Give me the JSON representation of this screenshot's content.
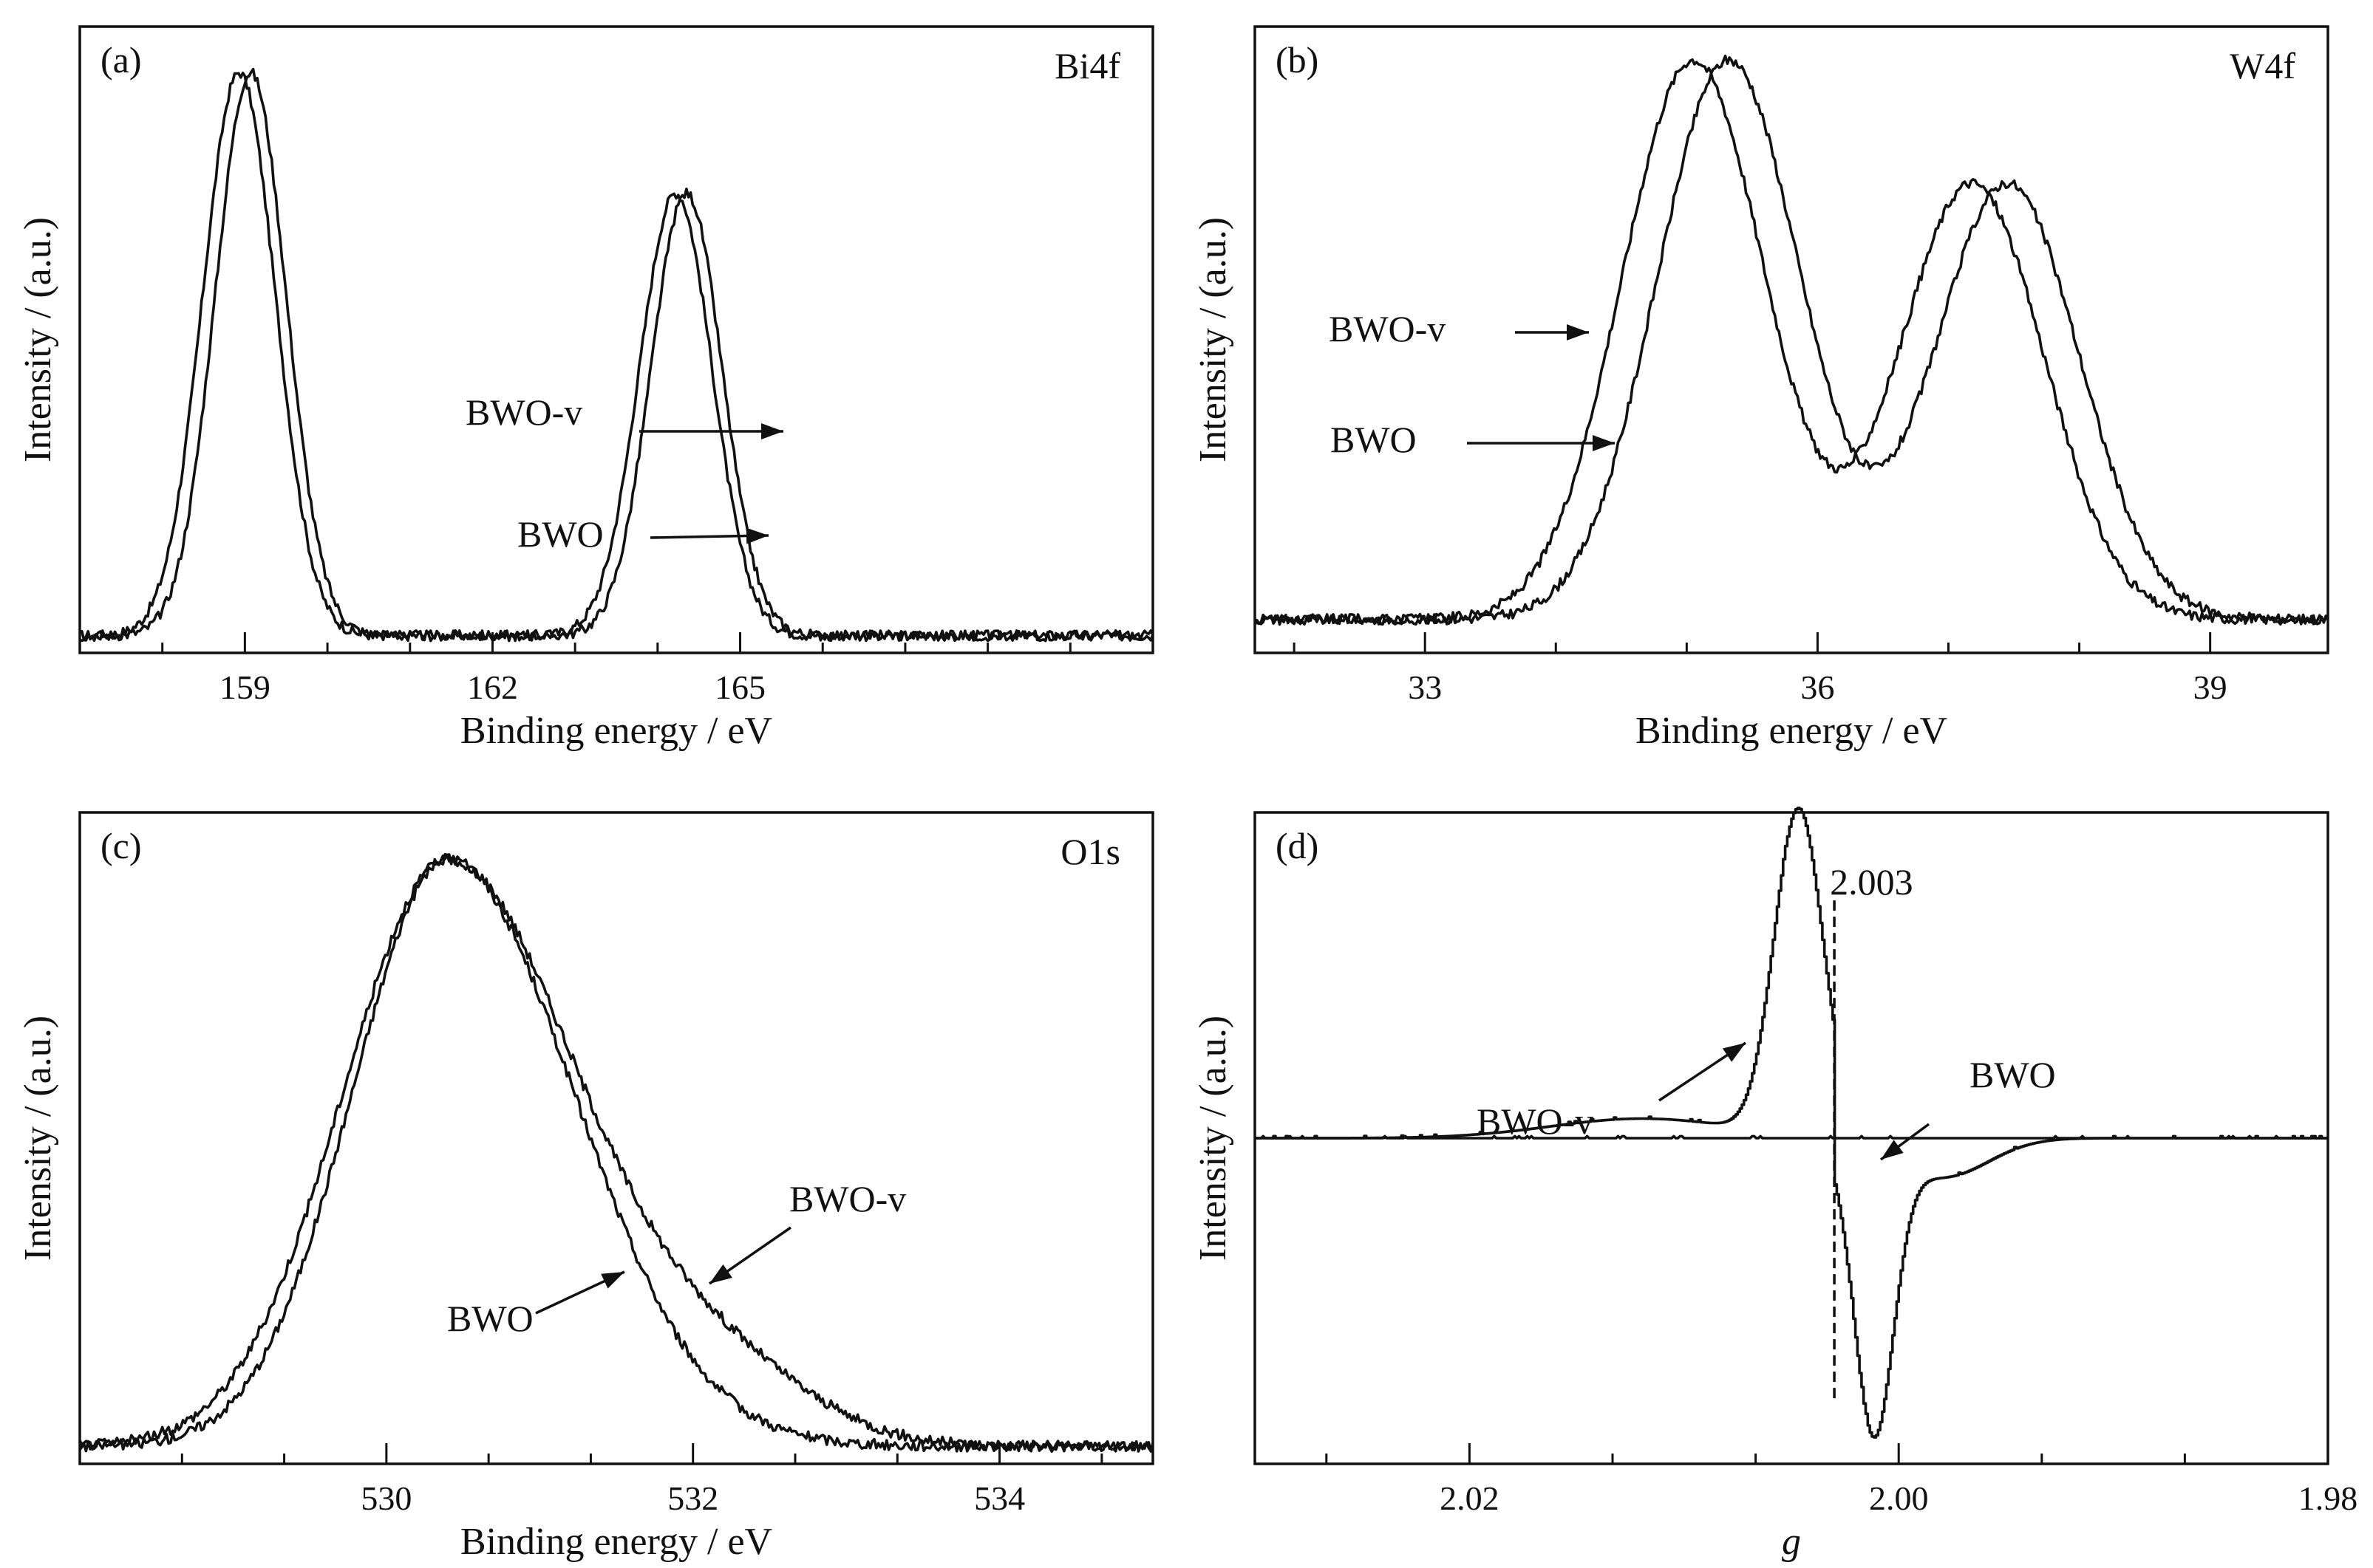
{
  "chart_data": [
    {
      "id": "a",
      "type": "line",
      "panel_label": "(a)",
      "title": "Bi4f",
      "xlabel": "Binding energy / eV",
      "ylabel": "Intensity / (a.u.)",
      "xlim": [
        157.0,
        170.0
      ],
      "ylim": [
        -0.03,
        1.06
      ],
      "xticks": [
        159,
        162,
        165
      ],
      "xtick_labels": [
        "159",
        "162",
        "165"
      ],
      "y_tick_labels": false,
      "series": [
        {
          "name": "BWO-v",
          "peaks": [
            {
              "center": 158.93,
              "height": 0.98,
              "width": 0.44
            },
            {
              "center": 164.22,
              "height": 0.77,
              "width": 0.44
            }
          ],
          "baseline": 0.0
        },
        {
          "name": "BWO",
          "peaks": [
            {
              "center": 159.07,
              "height": 0.98,
              "width": 0.43
            },
            {
              "center": 164.35,
              "height": 0.77,
              "width": 0.43
            }
          ],
          "baseline": 0.0
        }
      ],
      "annotations": [
        {
          "text": "BWO-v",
          "arrow_to": [
            163.5,
            0.38
          ]
        },
        {
          "text": "BWO",
          "arrow_to": [
            163.45,
            0.17
          ]
        }
      ]
    },
    {
      "id": "b",
      "type": "line",
      "panel_label": "(b)",
      "title": "W4f",
      "xlabel": "Binding energy / eV",
      "ylabel": "Intensity / (a.u.)",
      "xlim": [
        31.7,
        39.9
      ],
      "ylim": [
        -0.06,
        1.06
      ],
      "xticks": [
        33,
        36,
        39
      ],
      "xtick_labels": [
        "33",
        "36",
        "39"
      ],
      "y_tick_labels": false,
      "series": [
        {
          "name": "BWO-v",
          "peaks": [
            {
              "center": 35.05,
              "height": 1.0,
              "width": 0.55
            },
            {
              "center": 37.18,
              "height": 0.78,
              "width": 0.55
            }
          ],
          "baseline": 0.0
        },
        {
          "name": "BWO",
          "peaks": [
            {
              "center": 35.32,
              "height": 1.0,
              "width": 0.55
            },
            {
              "center": 37.45,
              "height": 0.78,
              "width": 0.55
            }
          ],
          "baseline": 0.0
        }
      ],
      "annotations": [
        {
          "text": "BWO-v",
          "arrow_to": [
            34.35,
            0.6
          ]
        },
        {
          "text": "BWO",
          "arrow_to": [
            34.6,
            0.37
          ]
        }
      ]
    },
    {
      "id": "c",
      "type": "line",
      "panel_label": "(c)",
      "title": "O1s",
      "xlabel": "Binding energy / eV",
      "ylabel": "Intensity / (a.u.)",
      "xlim": [
        528.0,
        535.0
      ],
      "ylim": [
        -0.03,
        1.08
      ],
      "xticks": [
        530,
        532,
        534
      ],
      "xtick_labels": [
        "530",
        "532",
        "534"
      ],
      "y_tick_labels": false,
      "series": [
        {
          "name": "BWO-v",
          "peaks": [
            {
              "center": 530.4,
              "height": 1.0,
              "width_left": 0.62,
              "width_right": 0.85
            }
          ],
          "shoulder": {
            "center": 532.2,
            "height": 0.11,
            "width": 0.6
          },
          "baseline": 0.0
        },
        {
          "name": "BWO",
          "peaks": [
            {
              "center": 530.4,
              "height": 1.0,
              "width_left": 0.68,
              "width_right": 0.82
            }
          ],
          "baseline": 0.0
        }
      ],
      "annotations": [
        {
          "text": "BWO-v",
          "arrow_to": [
            532.15,
            0.3
          ]
        },
        {
          "text": "BWO",
          "arrow_to": [
            531.6,
            0.3
          ]
        }
      ]
    },
    {
      "id": "d",
      "type": "line",
      "panel_label": "(d)",
      "title": "",
      "xlabel": "g",
      "ylabel": "Intensity / (a.u.)",
      "xlim": [
        2.03,
        1.98
      ],
      "x_reversed": true,
      "ylim": [
        -1.0,
        1.0
      ],
      "xticks": [
        2.02,
        2.0,
        1.98
      ],
      "xtick_labels": [
        "2.02",
        "2.00",
        "1.98"
      ],
      "y_tick_labels": false,
      "series": [
        {
          "name": "BWO-v",
          "derivative_signal": {
            "center": 2.003,
            "max_at": 2.0047,
            "max_value": 1.0,
            "min_at": 2.0012,
            "min_value": -0.88
          }
        },
        {
          "name": "BWO",
          "derivative_signal": {
            "center": 2.003,
            "flat": 0.0
          }
        }
      ],
      "reference_line": {
        "x": 2.003,
        "label": "2.003",
        "y_range": [
          -0.8,
          0.73
        ]
      },
      "annotations": [
        {
          "text": "BWO-v",
          "arrow_to": [
            2.0065,
            0.44
          ]
        },
        {
          "text": "BWO",
          "arrow_to": [
            2.0,
            0.02
          ]
        }
      ]
    }
  ]
}
